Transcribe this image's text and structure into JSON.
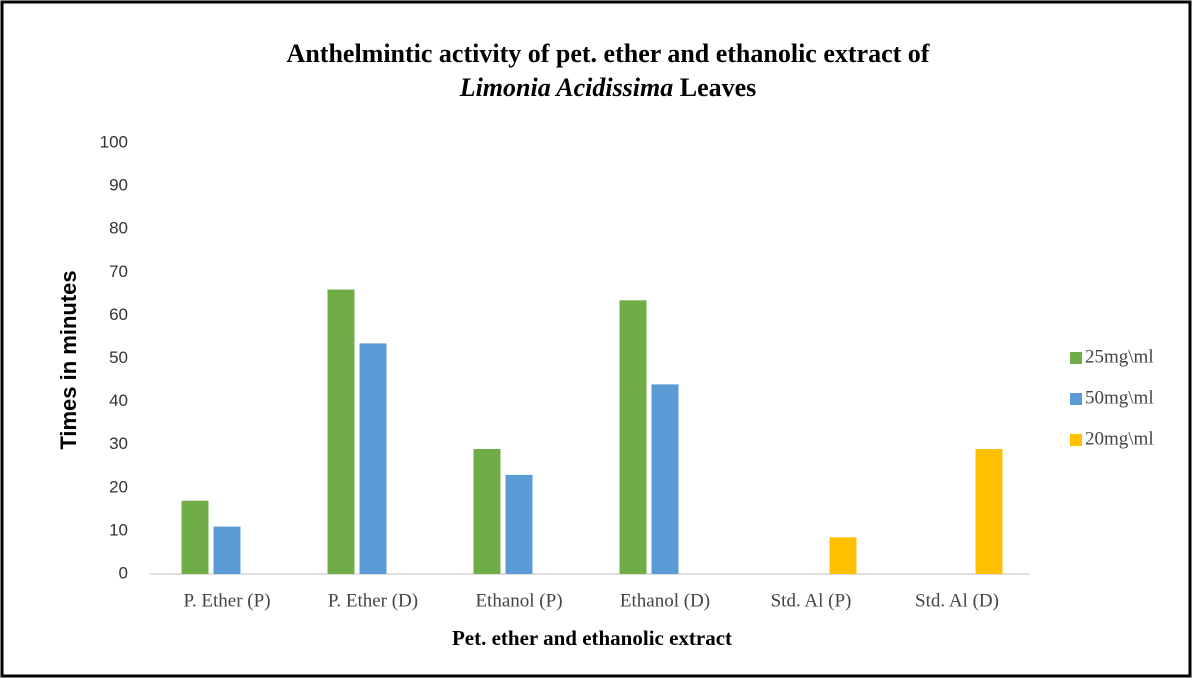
{
  "chart_data": {
    "type": "bar",
    "title": [
      "Anthelmintic activity of pet. ether and ethanolic extract of",
      "Limonia Acidissima",
      "Leaves"
    ],
    "x_label": "Pet. ether and ethanolic extract",
    "y_label": "Times in minutes",
    "categories": [
      "P. Ether (P)",
      "P. Ether (D)",
      "Ethanol (P)",
      "Ethanol (D)",
      "Std. Al  (P)",
      "Std. Al (D)"
    ],
    "series": [
      {
        "name": "25mg\\ml",
        "color": "#70ad47",
        "values": [
          17,
          66,
          29,
          63.5,
          null,
          null
        ]
      },
      {
        "name": "50mg\\ml",
        "color": "#5b9bd5",
        "values": [
          11,
          53.5,
          23,
          44,
          null,
          null
        ]
      },
      {
        "name": "20mg\\ml",
        "color": "#ffc000",
        "values": [
          null,
          null,
          null,
          null,
          8.5,
          29
        ]
      }
    ],
    "ylim": [
      0,
      100
    ],
    "yticks": [
      0,
      10,
      20,
      30,
      40,
      50,
      60,
      70,
      80,
      90,
      100
    ],
    "grid": false,
    "legend": "right"
  }
}
